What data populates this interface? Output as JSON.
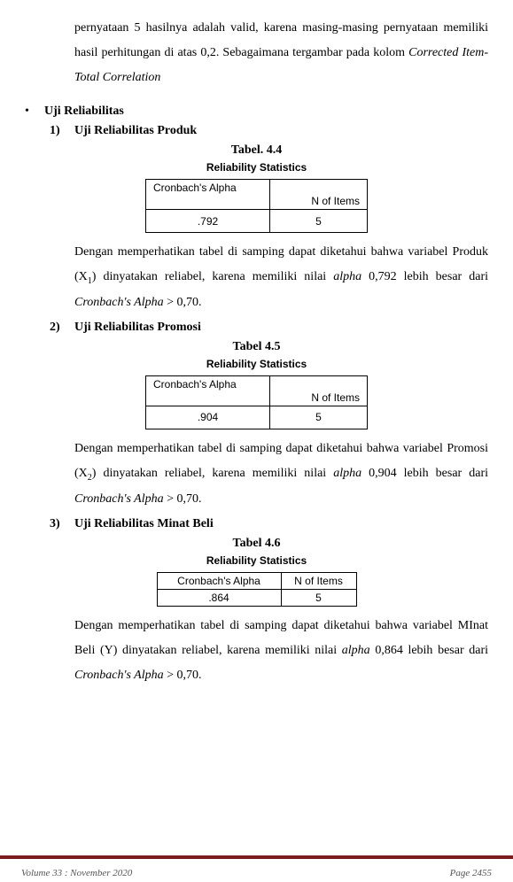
{
  "intro": {
    "line1": "pernyataan 5 hasilnya adalah valid, karena masing-masing pernyataan",
    "line2": "memiliki hasil perhitungan di atas 0,2. Sebagaimana tergambar pada",
    "line3_a": "kolom ",
    "line3_b": "Corrected Item-Total Correlation"
  },
  "bullet_label": "Uji Reliabilitas",
  "sections": [
    {
      "num": "1)",
      "title": "Uji Reliabilitas Produk",
      "table_caption": "Tabel. 4.4",
      "subcaption": "Reliability Statistics",
      "table": {
        "col1_header": "Cronbach's Alpha",
        "col2_header": "N of Items",
        "alpha": ".792",
        "n": "5",
        "col1_w": 140,
        "col2_w": 110,
        "style": "tall"
      },
      "para_a": "Dengan memperhatikan tabel di samping dapat diketahui bahwa variabel Produk (X",
      "para_sub": "1",
      "para_b": ") dinyatakan reliabel, karena memiliki nilai ",
      "para_it1": "alpha",
      "para_c": " 0,792 lebih besar dari ",
      "para_it2": "Cronbach's Alpha",
      "para_d": " > 0,70."
    },
    {
      "num": "2)",
      "title": "Uji Reliabilitas Promosi",
      "table_caption": "Tabel 4.5",
      "subcaption": "Reliability Statistics",
      "table": {
        "col1_header": "Cronbach's Alpha",
        "col2_header": "N of Items",
        "alpha": ".904",
        "n": "5",
        "col1_w": 140,
        "col2_w": 110,
        "style": "tall"
      },
      "para_a": "Dengan memperhatikan tabel di samping dapat diketahui bahwa variabel Promosi (X",
      "para_sub": "2",
      "para_b": ") dinyatakan reliabel, karena memiliki nilai ",
      "para_it1": "alpha",
      "para_c": " 0,904 lebih besar dari ",
      "para_it2": "Cronbach's Alpha",
      "para_d": " > 0,70."
    },
    {
      "num": "3)",
      "title": "Uji Reliabilitas Minat Beli",
      "table_caption": "Tabel 4.6",
      "subcaption": "Reliability Statistics",
      "table": {
        "col1_header": "Cronbach's Alpha",
        "col2_header": "N of Items",
        "alpha": ".864",
        "n": "5",
        "col1_w": 140,
        "col2_w": 85,
        "style": "short"
      },
      "para_a": "Dengan memperhatikan tabel di samping dapat diketahui bahwa variabel MInat Beli (Y) dinyatakan reliabel, karena memiliki nilai ",
      "para_sub": "",
      "para_b": "",
      "para_it1": "alpha",
      "para_c": " 0,864 lebih besar dari ",
      "para_it2": "Cronbach's Alpha",
      "para_d": " > 0,70."
    }
  ],
  "footer": {
    "left": "Volume 33 : November 2020",
    "right": "Page 2455"
  },
  "colors": {
    "rule": "#7a1d1d",
    "text": "#000000",
    "footer_text": "#555555",
    "background": "#ffffff"
  }
}
